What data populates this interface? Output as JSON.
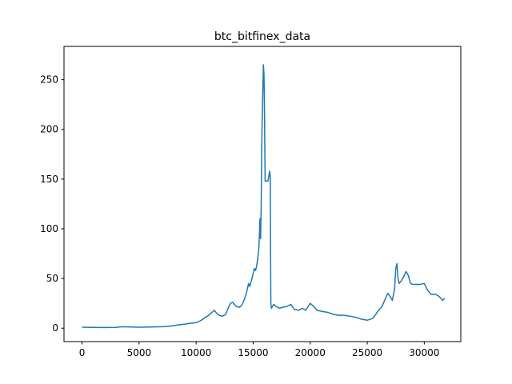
{
  "chart_data": {
    "type": "line",
    "title": "btc_bitfinex_data",
    "xlabel": "",
    "ylabel": "",
    "xlim": [
      -1580,
      33200
    ],
    "ylim": [
      -13.5,
      283.5
    ],
    "xticks": [
      0,
      5000,
      10000,
      15000,
      20000,
      25000,
      30000
    ],
    "yticks": [
      0,
      50,
      100,
      150,
      200,
      250
    ],
    "grid": false,
    "line_color": "#1f77b4",
    "series": [
      {
        "x": [
          0,
          1000,
          2000,
          3000,
          3500,
          4000,
          5000,
          6000,
          7000,
          7500,
          8000,
          8500,
          9000,
          9500,
          10000,
          10300,
          10600,
          10800,
          11000,
          11200,
          11400,
          11600,
          11800,
          12000,
          12300,
          12600,
          12800,
          13000,
          13200,
          13500,
          13800,
          14000,
          14200,
          14400,
          14500,
          14600,
          14700,
          14800,
          14900,
          15000,
          15100,
          15200,
          15300,
          15400,
          15500,
          15600,
          15650,
          15700,
          15750,
          15800,
          15850,
          15900,
          15950,
          16000,
          16050,
          16100,
          16150,
          16200,
          16300,
          16400,
          16450,
          16500,
          16550,
          16600,
          16700,
          16800,
          17000,
          17300,
          17600,
          18000,
          18300,
          18600,
          19000,
          19300,
          19600,
          20000,
          20300,
          20600,
          21000,
          21500,
          22000,
          22500,
          23000,
          23500,
          24000,
          24500,
          25000,
          25500,
          26000,
          26300,
          26600,
          26800,
          27000,
          27200,
          27400,
          27500,
          27600,
          27700,
          27800,
          28000,
          28200,
          28400,
          28600,
          28800,
          29000,
          29300,
          29600,
          30000,
          30300,
          30600,
          31000,
          31300,
          31600,
          31800
        ],
        "y": [
          1,
          0.8,
          0.7,
          0.8,
          1.5,
          1.3,
          1,
          1.2,
          1.5,
          1.8,
          2.5,
          3.5,
          4,
          5,
          5.5,
          7,
          9,
          11,
          12,
          14,
          16,
          18,
          15,
          13,
          12,
          14,
          20,
          25,
          26,
          22,
          21,
          23,
          28,
          35,
          40,
          45,
          42,
          46,
          50,
          55,
          60,
          58,
          62,
          70,
          80,
          110,
          90,
          120,
          180,
          215,
          240,
          265,
          255,
          210,
          148,
          148,
          148,
          148,
          148,
          155,
          158,
          150,
          25,
          20,
          22,
          24,
          22,
          20,
          21,
          22,
          24,
          19,
          18,
          20,
          18,
          25,
          22,
          18,
          17,
          16,
          14,
          13,
          13,
          12,
          11,
          9,
          8,
          10,
          18,
          22,
          30,
          35,
          32,
          28,
          40,
          60,
          65,
          50,
          45,
          48,
          52,
          57,
          53,
          45,
          44,
          44,
          44,
          45,
          38,
          34,
          34,
          32,
          28,
          30
        ]
      }
    ]
  }
}
